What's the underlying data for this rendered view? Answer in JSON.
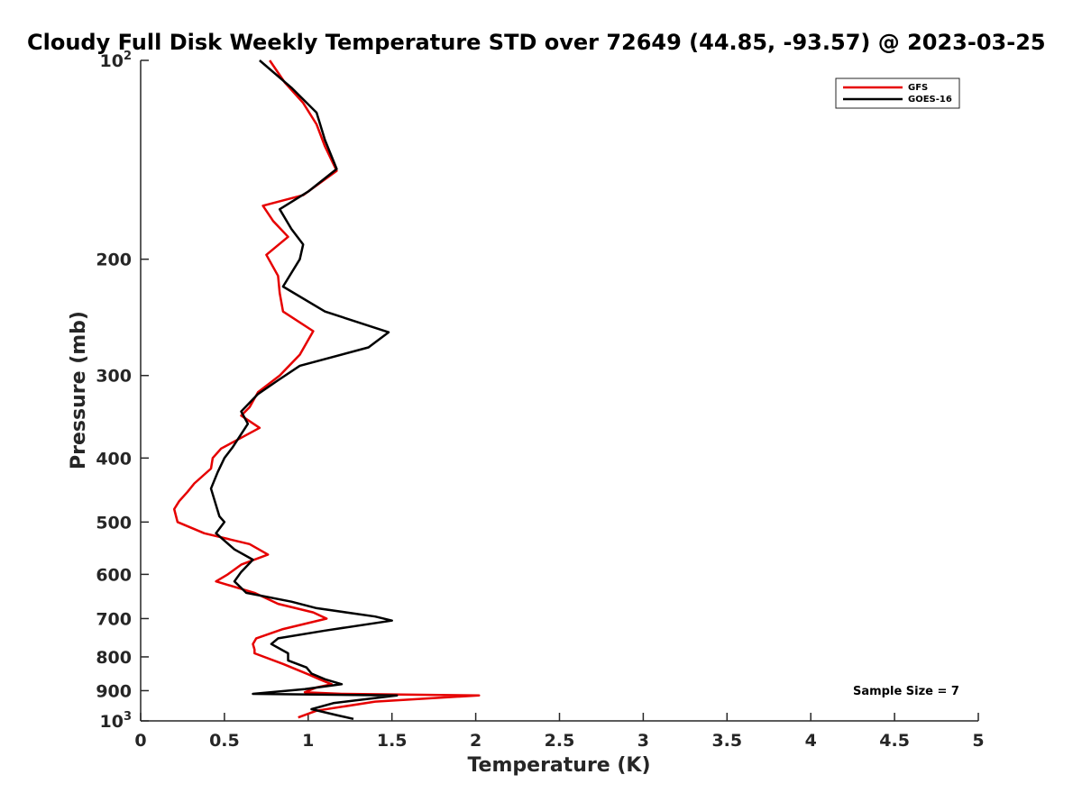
{
  "chart_data": {
    "type": "line",
    "title": "Cloudy Full Disk Weekly Temperature STD over 72649 (44.85, -93.57) @ 2023-03-25",
    "xlabel": "Temperature (K)",
    "ylabel": "Pressure (mb)",
    "xlim": [
      0,
      5
    ],
    "ylim": [
      100,
      1000
    ],
    "y_scale": "log",
    "y_reversed": true,
    "x_ticks": [
      0,
      0.5,
      1,
      1.5,
      2,
      2.5,
      3,
      3.5,
      4,
      4.5,
      5
    ],
    "x_tick_labels": [
      "0",
      "0.5",
      "1",
      "1.5",
      "2",
      "2.5",
      "3",
      "3.5",
      "4",
      "4.5",
      "5"
    ],
    "y_ticks": [
      {
        "value": 100,
        "base": "10",
        "exp": "2"
      },
      {
        "value": 200,
        "label": "200"
      },
      {
        "value": 300,
        "label": "300"
      },
      {
        "value": 400,
        "label": "400"
      },
      {
        "value": 500,
        "label": "500"
      },
      {
        "value": 600,
        "label": "600"
      },
      {
        "value": 700,
        "label": "700"
      },
      {
        "value": 800,
        "label": "800"
      },
      {
        "value": 900,
        "label": "900"
      },
      {
        "value": 1000,
        "base": "10",
        "exp": "3"
      }
    ],
    "grid": false,
    "legend_position": "top-right",
    "annotation": "Sample Size = 7",
    "series": [
      {
        "name": "GFS",
        "color": "#e60000",
        "points": [
          [
            0.77,
            100
          ],
          [
            0.86,
            108
          ],
          [
            0.97,
            116
          ],
          [
            1.05,
            125
          ],
          [
            1.1,
            135
          ],
          [
            1.17,
            147
          ],
          [
            0.97,
            160
          ],
          [
            0.73,
            166
          ],
          [
            0.79,
            175
          ],
          [
            0.88,
            185
          ],
          [
            0.75,
            197
          ],
          [
            0.82,
            212
          ],
          [
            0.83,
            225
          ],
          [
            0.85,
            240
          ],
          [
            1.03,
            257
          ],
          [
            0.95,
            279
          ],
          [
            0.83,
            300
          ],
          [
            0.7,
            318
          ],
          [
            0.65,
            335
          ],
          [
            0.6,
            345
          ],
          [
            0.71,
            360
          ],
          [
            0.58,
            375
          ],
          [
            0.48,
            387
          ],
          [
            0.43,
            400
          ],
          [
            0.42,
            415
          ],
          [
            0.32,
            437
          ],
          [
            0.28,
            450
          ],
          [
            0.23,
            465
          ],
          [
            0.2,
            478
          ],
          [
            0.22,
            500
          ],
          [
            0.38,
            520
          ],
          [
            0.65,
            540
          ],
          [
            0.76,
            560
          ],
          [
            0.6,
            580
          ],
          [
            0.52,
            600
          ],
          [
            0.45,
            615
          ],
          [
            0.68,
            640
          ],
          [
            0.82,
            665
          ],
          [
            1.03,
            685
          ],
          [
            1.11,
            700
          ],
          [
            0.85,
            726
          ],
          [
            0.69,
            750
          ],
          [
            0.67,
            765
          ],
          [
            0.68,
            780
          ],
          [
            0.68,
            790
          ],
          [
            0.85,
            820
          ],
          [
            1.0,
            850
          ],
          [
            1.08,
            868
          ],
          [
            1.14,
            880
          ],
          [
            1.05,
            890
          ],
          [
            0.98,
            905
          ],
          [
            1.2,
            910
          ],
          [
            2.02,
            915
          ],
          [
            1.4,
            935
          ],
          [
            1.05,
            965
          ],
          [
            0.94,
            988
          ]
        ]
      },
      {
        "name": "GOES-16",
        "color": "#000000",
        "points": [
          [
            0.71,
            100
          ],
          [
            0.9,
            110
          ],
          [
            1.05,
            120
          ],
          [
            1.1,
            132
          ],
          [
            1.17,
            146
          ],
          [
            1.0,
            158
          ],
          [
            0.83,
            168
          ],
          [
            0.9,
            180
          ],
          [
            0.97,
            190
          ],
          [
            0.95,
            200
          ],
          [
            0.85,
            220
          ],
          [
            1.1,
            240
          ],
          [
            1.48,
            258
          ],
          [
            1.36,
            272
          ],
          [
            0.95,
            290
          ],
          [
            0.82,
            305
          ],
          [
            0.7,
            320
          ],
          [
            0.6,
            340
          ],
          [
            0.64,
            355
          ],
          [
            0.55,
            385
          ],
          [
            0.5,
            400
          ],
          [
            0.46,
            420
          ],
          [
            0.42,
            445
          ],
          [
            0.47,
            490
          ],
          [
            0.5,
            500
          ],
          [
            0.45,
            520
          ],
          [
            0.56,
            550
          ],
          [
            0.67,
            570
          ],
          [
            0.6,
            595
          ],
          [
            0.56,
            615
          ],
          [
            0.63,
            640
          ],
          [
            0.9,
            660
          ],
          [
            1.05,
            675
          ],
          [
            1.4,
            695
          ],
          [
            1.5,
            705
          ],
          [
            1.1,
            730
          ],
          [
            0.82,
            750
          ],
          [
            0.78,
            765
          ],
          [
            0.88,
            790
          ],
          [
            0.88,
            810
          ],
          [
            0.99,
            830
          ],
          [
            1.02,
            848
          ],
          [
            1.1,
            865
          ],
          [
            1.2,
            880
          ],
          [
            0.98,
            895
          ],
          [
            0.67,
            910
          ],
          [
            1.53,
            915
          ],
          [
            1.15,
            940
          ],
          [
            1.02,
            960
          ],
          [
            1.17,
            980
          ],
          [
            1.27,
            993
          ]
        ]
      }
    ]
  }
}
